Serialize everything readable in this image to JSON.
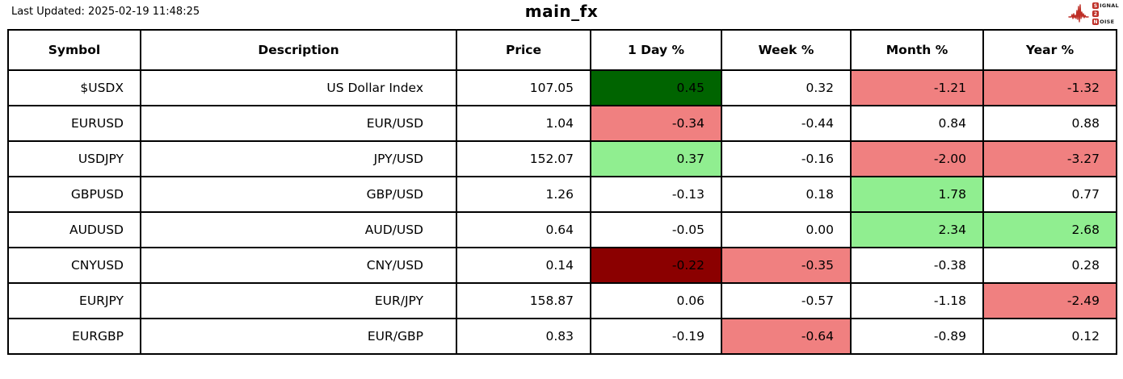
{
  "page": {
    "last_updated": "Last Updated: 2025-02-19 11:48:25",
    "title": "main_fx"
  },
  "logo": {
    "signal_initial": "S",
    "signal_rest": "IGNAL",
    "middle_digit": "2",
    "noise_initial": "N",
    "noise_rest": "OISE",
    "accent_color": "#be2f27"
  },
  "colors": {
    "darkgreen": "#006400",
    "lightgreen": "#90ee90",
    "lightcoral": "#f08080",
    "darkred": "#8b0000",
    "white": "#ffffff"
  },
  "table": {
    "columns": [
      "Symbol",
      "Description",
      "Price",
      "1 Day %",
      "Week %",
      "Month %",
      "Year %"
    ],
    "rows": [
      {
        "cells": [
          {
            "text": "$USDX"
          },
          {
            "text": "US Dollar Index"
          },
          {
            "text": "107.05"
          },
          {
            "text": "0.45",
            "bg": "darkgreen"
          },
          {
            "text": "0.32",
            "bg": "white"
          },
          {
            "text": "-1.21",
            "bg": "lightcoral"
          },
          {
            "text": "-1.32",
            "bg": "lightcoral"
          }
        ]
      },
      {
        "cells": [
          {
            "text": "EURUSD"
          },
          {
            "text": "EUR/USD"
          },
          {
            "text": "1.04"
          },
          {
            "text": "-0.34",
            "bg": "lightcoral"
          },
          {
            "text": "-0.44",
            "bg": "white"
          },
          {
            "text": "0.84",
            "bg": "white"
          },
          {
            "text": "0.88",
            "bg": "white"
          }
        ]
      },
      {
        "cells": [
          {
            "text": "USDJPY"
          },
          {
            "text": "JPY/USD"
          },
          {
            "text": "152.07"
          },
          {
            "text": "0.37",
            "bg": "lightgreen"
          },
          {
            "text": "-0.16",
            "bg": "white"
          },
          {
            "text": "-2.00",
            "bg": "lightcoral"
          },
          {
            "text": "-3.27",
            "bg": "lightcoral"
          }
        ]
      },
      {
        "cells": [
          {
            "text": "GBPUSD"
          },
          {
            "text": "GBP/USD"
          },
          {
            "text": "1.26"
          },
          {
            "text": "-0.13",
            "bg": "white"
          },
          {
            "text": "0.18",
            "bg": "white"
          },
          {
            "text": "1.78",
            "bg": "lightgreen"
          },
          {
            "text": "0.77",
            "bg": "white"
          }
        ]
      },
      {
        "cells": [
          {
            "text": "AUDUSD"
          },
          {
            "text": "AUD/USD"
          },
          {
            "text": "0.64"
          },
          {
            "text": "-0.05",
            "bg": "white"
          },
          {
            "text": "0.00",
            "bg": "white"
          },
          {
            "text": "2.34",
            "bg": "lightgreen"
          },
          {
            "text": "2.68",
            "bg": "lightgreen"
          }
        ]
      },
      {
        "cells": [
          {
            "text": "CNYUSD"
          },
          {
            "text": "CNY/USD"
          },
          {
            "text": "0.14"
          },
          {
            "text": "-0.22",
            "bg": "darkred"
          },
          {
            "text": "-0.35",
            "bg": "lightcoral"
          },
          {
            "text": "-0.38",
            "bg": "white"
          },
          {
            "text": "0.28",
            "bg": "white"
          }
        ]
      },
      {
        "cells": [
          {
            "text": "EURJPY"
          },
          {
            "text": "EUR/JPY"
          },
          {
            "text": "158.87"
          },
          {
            "text": "0.06",
            "bg": "white"
          },
          {
            "text": "-0.57",
            "bg": "white"
          },
          {
            "text": "-1.18",
            "bg": "white"
          },
          {
            "text": "-2.49",
            "bg": "lightcoral"
          }
        ]
      },
      {
        "cells": [
          {
            "text": "EURGBP"
          },
          {
            "text": "EUR/GBP"
          },
          {
            "text": "0.83"
          },
          {
            "text": "-0.19",
            "bg": "white"
          },
          {
            "text": "-0.64",
            "bg": "lightcoral"
          },
          {
            "text": "-0.89",
            "bg": "white"
          },
          {
            "text": "0.12",
            "bg": "white"
          }
        ]
      }
    ]
  },
  "chart_data": {
    "type": "table",
    "title": "main_fx",
    "last_updated": "2025-02-19 11:48:25",
    "columns": [
      "Symbol",
      "Description",
      "Price",
      "1 Day %",
      "Week %",
      "Month %",
      "Year %"
    ],
    "rows": [
      [
        "$USDX",
        "US Dollar Index",
        107.05,
        0.45,
        0.32,
        -1.21,
        -1.32
      ],
      [
        "EURUSD",
        "EUR/USD",
        1.04,
        -0.34,
        -0.44,
        0.84,
        0.88
      ],
      [
        "USDJPY",
        "JPY/USD",
        152.07,
        0.37,
        -0.16,
        -2.0,
        -3.27
      ],
      [
        "GBPUSD",
        "GBP/USD",
        1.26,
        -0.13,
        0.18,
        1.78,
        0.77
      ],
      [
        "AUDUSD",
        "AUD/USD",
        0.64,
        -0.05,
        0.0,
        2.34,
        2.68
      ],
      [
        "CNYUSD",
        "CNY/USD",
        0.14,
        -0.22,
        -0.35,
        -0.38,
        0.28
      ],
      [
        "EURJPY",
        "EUR/JPY",
        158.87,
        0.06,
        -0.57,
        -1.18,
        -2.49
      ],
      [
        "EURGBP",
        "EUR/GBP",
        0.83,
        -0.19,
        -0.64,
        -0.89,
        0.12
      ]
    ]
  }
}
